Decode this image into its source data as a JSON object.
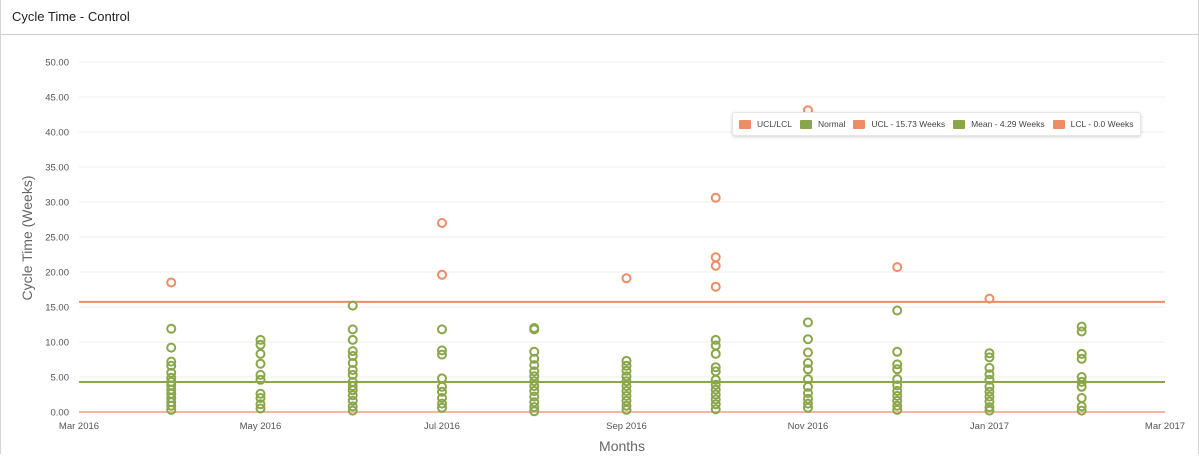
{
  "panel": {
    "title": "Cycle Time - Control"
  },
  "colors": {
    "outlier": "#ef8c68",
    "normal": "#8aa64b",
    "ucl_line": "#ef8c68",
    "mean_line": "#8aa64b",
    "lcl_line": "#f2b7a4",
    "grid": "#ececec"
  },
  "legend": [
    {
      "label": "UCL/LCL",
      "color": "#ef8c68"
    },
    {
      "label": "Normal",
      "color": "#8aa64b"
    },
    {
      "label": "UCL - 15.73 Weeks",
      "color": "#ef8c68"
    },
    {
      "label": "Mean - 4.29 Weeks",
      "color": "#8aa64b"
    },
    {
      "label": "LCL - 0.0 Weeks",
      "color": "#ef8c68"
    }
  ],
  "chart_data": {
    "type": "scatter",
    "xlabel": "Months",
    "ylabel": "Cycle Time (Weeks)",
    "x_range": [
      "2016-03-01",
      "2017-03-01"
    ],
    "ylim": [
      0,
      50
    ],
    "y_ticks": [
      "0.00",
      "5.00",
      "10.00",
      "15.00",
      "20.00",
      "25.00",
      "30.00",
      "35.00",
      "40.00",
      "45.00",
      "50.00"
    ],
    "x_ticks": [
      {
        "date": "2016-03-01",
        "label": "Mar 2016"
      },
      {
        "date": "2016-05-01",
        "label": "May 2016"
      },
      {
        "date": "2016-07-01",
        "label": "Jul 2016"
      },
      {
        "date": "2016-09-01",
        "label": "Sep 2016"
      },
      {
        "date": "2016-11-01",
        "label": "Nov 2016"
      },
      {
        "date": "2017-01-01",
        "label": "Jan 2017"
      },
      {
        "date": "2017-03-01",
        "label": "Mar 2017"
      }
    ],
    "grid": true,
    "legend_position": "top-right",
    "reference_lines": [
      {
        "name": "UCL - 15.73 Weeks",
        "value": 15.73,
        "color": "#ef8c68"
      },
      {
        "name": "Mean - 4.29 Weeks",
        "value": 4.29,
        "color": "#8aa64b"
      },
      {
        "name": "LCL - 0.0 Weeks",
        "value": 0.0,
        "color": "#f2b7a4"
      }
    ],
    "series": [
      {
        "name": "UCL/LCL",
        "color": "#ef8c68",
        "points": [
          {
            "x": "2016-04-01",
            "y": 18.5
          },
          {
            "x": "2016-07-01",
            "y": 27.0
          },
          {
            "x": "2016-07-01",
            "y": 19.6
          },
          {
            "x": "2016-09-01",
            "y": 19.1
          },
          {
            "x": "2016-10-01",
            "y": 30.6
          },
          {
            "x": "2016-10-01",
            "y": 22.1
          },
          {
            "x": "2016-10-01",
            "y": 20.9
          },
          {
            "x": "2016-10-01",
            "y": 17.9
          },
          {
            "x": "2016-11-01",
            "y": 43.1
          },
          {
            "x": "2016-12-01",
            "y": 20.7
          },
          {
            "x": "2017-01-01",
            "y": 16.2
          }
        ]
      },
      {
        "name": "Normal",
        "color": "#8aa64b",
        "points": [
          {
            "x": "2016-04-01",
            "y": 11.9
          },
          {
            "x": "2016-04-01",
            "y": 9.2
          },
          {
            "x": "2016-04-01",
            "y": 7.2
          },
          {
            "x": "2016-04-01",
            "y": 6.6
          },
          {
            "x": "2016-04-01",
            "y": 5.6
          },
          {
            "x": "2016-04-01",
            "y": 4.9
          },
          {
            "x": "2016-04-01",
            "y": 4.3
          },
          {
            "x": "2016-04-01",
            "y": 3.8
          },
          {
            "x": "2016-04-01",
            "y": 3.2
          },
          {
            "x": "2016-04-01",
            "y": 2.6
          },
          {
            "x": "2016-04-01",
            "y": 2.0
          },
          {
            "x": "2016-04-01",
            "y": 1.4
          },
          {
            "x": "2016-04-01",
            "y": 0.9
          },
          {
            "x": "2016-04-01",
            "y": 0.3
          },
          {
            "x": "2016-05-01",
            "y": 10.3
          },
          {
            "x": "2016-05-01",
            "y": 9.6
          },
          {
            "x": "2016-05-01",
            "y": 8.3
          },
          {
            "x": "2016-05-01",
            "y": 6.9
          },
          {
            "x": "2016-05-01",
            "y": 5.3
          },
          {
            "x": "2016-05-01",
            "y": 4.6
          },
          {
            "x": "2016-05-01",
            "y": 2.6
          },
          {
            "x": "2016-05-01",
            "y": 2.0
          },
          {
            "x": "2016-05-01",
            "y": 1.1
          },
          {
            "x": "2016-05-01",
            "y": 0.5
          },
          {
            "x": "2016-06-01",
            "y": 15.2
          },
          {
            "x": "2016-06-01",
            "y": 11.8
          },
          {
            "x": "2016-06-01",
            "y": 10.3
          },
          {
            "x": "2016-06-01",
            "y": 8.7
          },
          {
            "x": "2016-06-01",
            "y": 8.0
          },
          {
            "x": "2016-06-01",
            "y": 7.0
          },
          {
            "x": "2016-06-01",
            "y": 6.0
          },
          {
            "x": "2016-06-01",
            "y": 5.3
          },
          {
            "x": "2016-06-01",
            "y": 4.3
          },
          {
            "x": "2016-06-01",
            "y": 3.7
          },
          {
            "x": "2016-06-01",
            "y": 3.1
          },
          {
            "x": "2016-06-01",
            "y": 2.4
          },
          {
            "x": "2016-06-01",
            "y": 1.6
          },
          {
            "x": "2016-06-01",
            "y": 0.8
          },
          {
            "x": "2016-06-01",
            "y": 0.2
          },
          {
            "x": "2016-07-01",
            "y": 11.8
          },
          {
            "x": "2016-07-01",
            "y": 8.8
          },
          {
            "x": "2016-07-01",
            "y": 8.2
          },
          {
            "x": "2016-07-01",
            "y": 4.8
          },
          {
            "x": "2016-07-01",
            "y": 3.6
          },
          {
            "x": "2016-07-01",
            "y": 2.9
          },
          {
            "x": "2016-07-01",
            "y": 2.0
          },
          {
            "x": "2016-07-01",
            "y": 1.2
          },
          {
            "x": "2016-07-01",
            "y": 0.6
          },
          {
            "x": "2016-08-01",
            "y": 12.0
          },
          {
            "x": "2016-08-01",
            "y": 11.8
          },
          {
            "x": "2016-08-01",
            "y": 8.6
          },
          {
            "x": "2016-08-01",
            "y": 7.6
          },
          {
            "x": "2016-08-01",
            "y": 6.7
          },
          {
            "x": "2016-08-01",
            "y": 5.8
          },
          {
            "x": "2016-08-01",
            "y": 5.1
          },
          {
            "x": "2016-08-01",
            "y": 4.4
          },
          {
            "x": "2016-08-01",
            "y": 3.7
          },
          {
            "x": "2016-08-01",
            "y": 3.0
          },
          {
            "x": "2016-08-01",
            "y": 2.2
          },
          {
            "x": "2016-08-01",
            "y": 1.4
          },
          {
            "x": "2016-08-01",
            "y": 0.7
          },
          {
            "x": "2016-08-01",
            "y": 0.1
          },
          {
            "x": "2016-09-01",
            "y": 7.3
          },
          {
            "x": "2016-09-01",
            "y": 6.6
          },
          {
            "x": "2016-09-01",
            "y": 5.9
          },
          {
            "x": "2016-09-01",
            "y": 5.1
          },
          {
            "x": "2016-09-01",
            "y": 4.4
          },
          {
            "x": "2016-09-01",
            "y": 3.7
          },
          {
            "x": "2016-09-01",
            "y": 3.0
          },
          {
            "x": "2016-09-01",
            "y": 2.3
          },
          {
            "x": "2016-09-01",
            "y": 1.6
          },
          {
            "x": "2016-09-01",
            "y": 0.9
          },
          {
            "x": "2016-09-01",
            "y": 0.3
          },
          {
            "x": "2016-10-01",
            "y": 10.3
          },
          {
            "x": "2016-10-01",
            "y": 9.5
          },
          {
            "x": "2016-10-01",
            "y": 8.3
          },
          {
            "x": "2016-10-01",
            "y": 6.4
          },
          {
            "x": "2016-10-01",
            "y": 5.8
          },
          {
            "x": "2016-10-01",
            "y": 4.6
          },
          {
            "x": "2016-10-01",
            "y": 3.9
          },
          {
            "x": "2016-10-01",
            "y": 3.2
          },
          {
            "x": "2016-10-01",
            "y": 2.5
          },
          {
            "x": "2016-10-01",
            "y": 1.8
          },
          {
            "x": "2016-10-01",
            "y": 1.1
          },
          {
            "x": "2016-10-01",
            "y": 0.4
          },
          {
            "x": "2016-11-01",
            "y": 12.8
          },
          {
            "x": "2016-11-01",
            "y": 10.4
          },
          {
            "x": "2016-11-01",
            "y": 8.5
          },
          {
            "x": "2016-11-01",
            "y": 7.0
          },
          {
            "x": "2016-11-01",
            "y": 6.1
          },
          {
            "x": "2016-11-01",
            "y": 4.7
          },
          {
            "x": "2016-11-01",
            "y": 3.6
          },
          {
            "x": "2016-11-01",
            "y": 2.7
          },
          {
            "x": "2016-11-01",
            "y": 1.9
          },
          {
            "x": "2016-11-01",
            "y": 1.2
          },
          {
            "x": "2016-11-01",
            "y": 0.6
          },
          {
            "x": "2016-12-01",
            "y": 14.5
          },
          {
            "x": "2016-12-01",
            "y": 8.6
          },
          {
            "x": "2016-12-01",
            "y": 6.8
          },
          {
            "x": "2016-12-01",
            "y": 6.1
          },
          {
            "x": "2016-12-01",
            "y": 4.7
          },
          {
            "x": "2016-12-01",
            "y": 3.8
          },
          {
            "x": "2016-12-01",
            "y": 3.0
          },
          {
            "x": "2016-12-01",
            "y": 2.3
          },
          {
            "x": "2016-12-01",
            "y": 1.6
          },
          {
            "x": "2016-12-01",
            "y": 0.9
          },
          {
            "x": "2016-12-01",
            "y": 0.3
          },
          {
            "x": "2017-01-01",
            "y": 8.4
          },
          {
            "x": "2017-01-01",
            "y": 7.8
          },
          {
            "x": "2017-01-01",
            "y": 6.3
          },
          {
            "x": "2017-01-01",
            "y": 5.4
          },
          {
            "x": "2017-01-01",
            "y": 4.6
          },
          {
            "x": "2017-01-01",
            "y": 3.6
          },
          {
            "x": "2017-01-01",
            "y": 2.9
          },
          {
            "x": "2017-01-01",
            "y": 2.2
          },
          {
            "x": "2017-01-01",
            "y": 1.5
          },
          {
            "x": "2017-01-01",
            "y": 0.7
          },
          {
            "x": "2017-01-01",
            "y": 0.2
          },
          {
            "x": "2017-02-01",
            "y": 12.2
          },
          {
            "x": "2017-02-01",
            "y": 11.5
          },
          {
            "x": "2017-02-01",
            "y": 8.3
          },
          {
            "x": "2017-02-01",
            "y": 7.6
          },
          {
            "x": "2017-02-01",
            "y": 5.0
          },
          {
            "x": "2017-02-01",
            "y": 4.3
          },
          {
            "x": "2017-02-01",
            "y": 3.6
          },
          {
            "x": "2017-02-01",
            "y": 2.0
          },
          {
            "x": "2017-02-01",
            "y": 0.8
          },
          {
            "x": "2017-02-01",
            "y": 0.2
          }
        ]
      }
    ]
  }
}
